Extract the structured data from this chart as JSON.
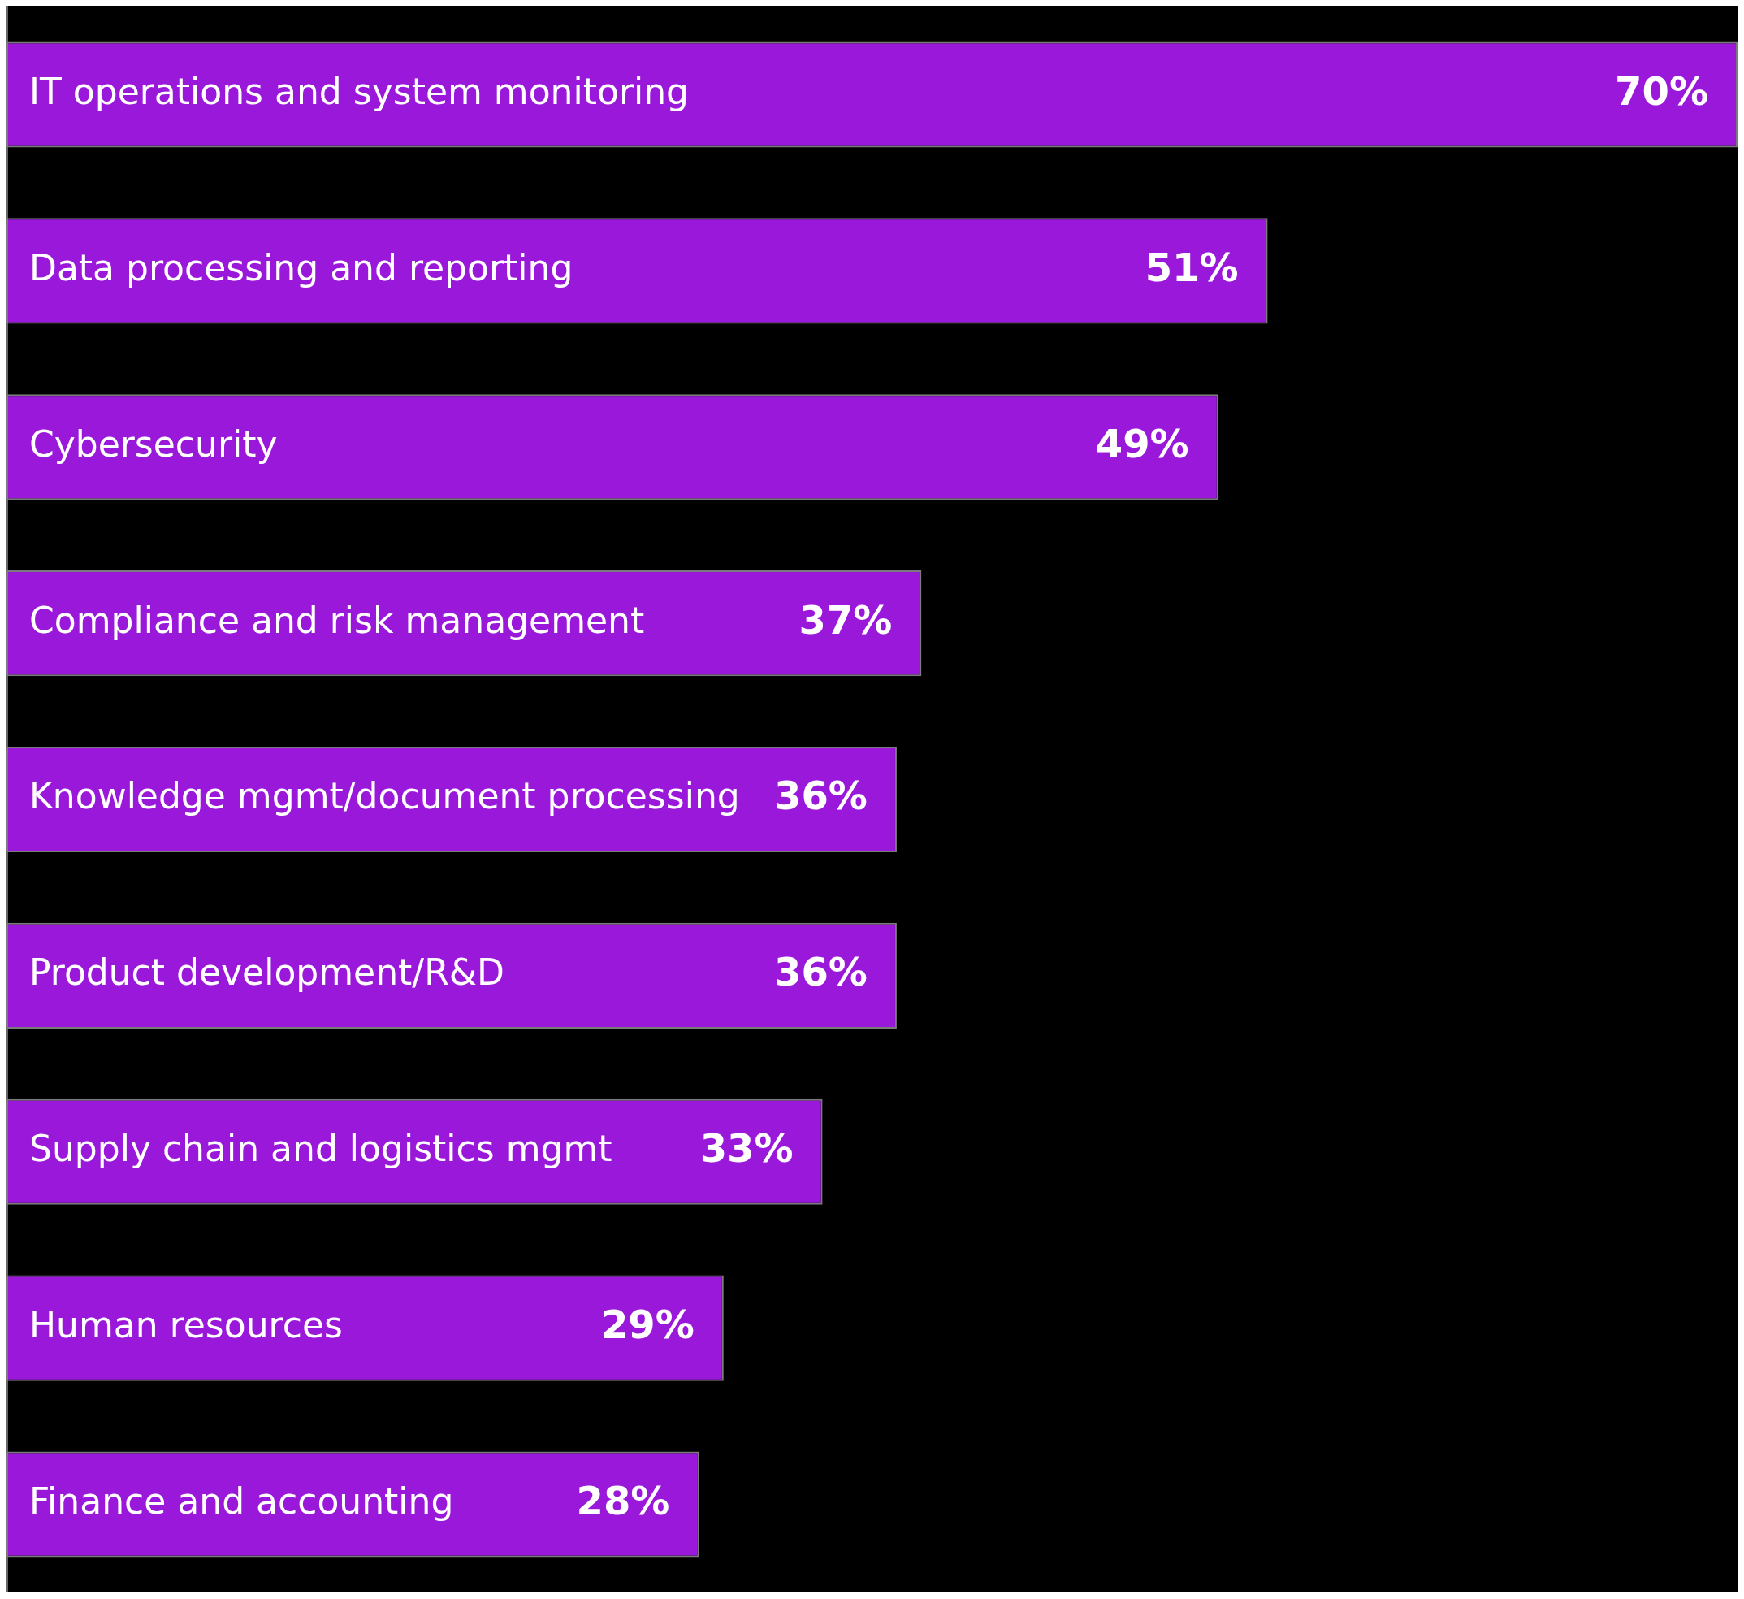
{
  "chart_data": {
    "type": "bar",
    "orientation": "horizontal",
    "categories": [
      "IT operations and system monitoring",
      "Data processing and reporting",
      "Cybersecurity",
      "Compliance and risk management",
      "Knowledge mgmt/document processing",
      "Product development/R&D",
      "Supply chain and logistics mgmt",
      "Human resources",
      "Finance and accounting"
    ],
    "values": [
      70,
      51,
      49,
      37,
      36,
      36,
      33,
      29,
      28
    ],
    "value_labels": [
      "70%",
      "51%",
      "49%",
      "37%",
      "36%",
      "36%",
      "33%",
      "29%",
      "28%"
    ],
    "color": "#9a18da"
  }
}
